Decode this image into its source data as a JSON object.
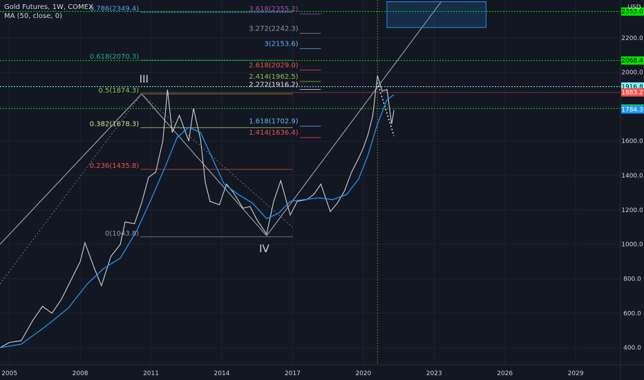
{
  "legend": {
    "title": "Gold Futures, 1W, COMEX",
    "ma": "MA (50, close, 0)"
  },
  "axis": {
    "currency": "USD",
    "y_ticks": [
      400,
      600,
      800,
      1000,
      1200,
      1400,
      1600,
      1800,
      2000,
      2200
    ],
    "y_tick_labels": [
      "400.0",
      "600.0",
      "800.0",
      "1000.0",
      "1200.0",
      "1400.0",
      "1600.0",
      "1800.0",
      "2000.0",
      "2200.0"
    ],
    "x_ticks": [
      2005,
      2008,
      2011,
      2014,
      2017,
      2020,
      2023,
      2026,
      2029
    ],
    "x_tick_labels": [
      "2005",
      "2008",
      "2011",
      "2014",
      "2017",
      "2020",
      "2023",
      "2026",
      "2029"
    ]
  },
  "price_tags": [
    {
      "label": "2353.0",
      "value": 2353.0,
      "color": "#00e600",
      "text_color": "#000000"
    },
    {
      "label": "2068.4",
      "value": 2068.4,
      "color": "#00e600",
      "text_color": "#000000"
    },
    {
      "label": "1916.8",
      "value": 1916.8,
      "color": "#80ffff",
      "text_color": "#000000"
    },
    {
      "label": "1883.2",
      "value": 1883.2,
      "color": "#ef5350",
      "text_color": "#ffffff"
    },
    {
      "label": "1788.9",
      "value": 1788.9,
      "color": "#00e600",
      "text_color": "#000000"
    },
    {
      "label": "1784.3",
      "value": 1784.3,
      "color": "#2196f3",
      "text_color": "#ffffff"
    }
  ],
  "fib_retracement": [
    {
      "label": "0.786(2349.4)",
      "value": 2349.4,
      "color": "#5b9cf6"
    },
    {
      "label": "0.618(2070.3)",
      "value": 2070.3,
      "color": "#26a69a"
    },
    {
      "label": "0.5(1874.3)",
      "value": 1874.3,
      "color": "#8bc34a"
    },
    {
      "label": "0.382(1678.3)",
      "value": 1678.3,
      "color": "#c6e88b"
    },
    {
      "label": "0.236(1435.8)",
      "value": 1435.8,
      "color": "#ef5350"
    },
    {
      "label": "0(1043.8)",
      "value": 1043.8,
      "color": "#9598a1"
    }
  ],
  "fib_extension": [
    {
      "label": "3.618(2355.2)",
      "value": 2355.2,
      "color": "#ab47bc"
    },
    {
      "label": "3.272(2242.3)",
      "value": 2242.3,
      "color": "#9598a1"
    },
    {
      "label": "3(2153.6)",
      "value": 2153.6,
      "color": "#64b5f6"
    },
    {
      "label": "2.618(2029.0)",
      "value": 2029.0,
      "color": "#ef5350"
    },
    {
      "label": "2.414(1962.5)",
      "value": 1962.5,
      "color": "#8bc34a"
    },
    {
      "label": "2.272(1916.2)",
      "value": 1916.2,
      "color": "#e0e3eb"
    },
    {
      "label": "1.618(1702.9)",
      "value": 1702.9,
      "color": "#64b5f6"
    },
    {
      "label": "1.414(1636.4)",
      "value": 1636.4,
      "color": "#ef5350"
    }
  ],
  "wave_labels": [
    {
      "label": "III",
      "year": 2010.7,
      "value": 1940
    },
    {
      "label": "IV",
      "year": 2015.8,
      "value": 955
    }
  ],
  "horizontal_levels": [
    {
      "value": 2353.0,
      "color": "#00e600"
    },
    {
      "value": 2068.4,
      "color": "#00e600"
    },
    {
      "value": 1916.8,
      "color": "#80ffff"
    },
    {
      "value": 1788.9,
      "color": "#00e600"
    }
  ],
  "chart_data": {
    "type": "line",
    "title": "Gold Futures, 1W, COMEX",
    "x_axis": "year",
    "y_axis": "price (USD)",
    "xlim": [
      2004.6,
      2030.9
    ],
    "ylim": [
      300,
      2420
    ],
    "grid": true,
    "series": [
      {
        "name": "Gold Futures",
        "color": "#d1d4dc",
        "x": [
          2004.6,
          2005.0,
          2005.5,
          2006.0,
          2006.4,
          2006.8,
          2007.2,
          2007.6,
          2008.0,
          2008.2,
          2008.6,
          2008.9,
          2009.3,
          2009.7,
          2009.9,
          2010.3,
          2010.6,
          2010.9,
          2011.2,
          2011.5,
          2011.7,
          2011.9,
          2012.2,
          2012.6,
          2012.8,
          2013.1,
          2013.3,
          2013.5,
          2013.9,
          2014.2,
          2014.5,
          2014.9,
          2015.2,
          2015.5,
          2015.9,
          2016.2,
          2016.5,
          2016.9,
          2017.2,
          2017.6,
          2017.9,
          2018.2,
          2018.6,
          2018.9,
          2019.2,
          2019.5,
          2019.8,
          2020.0,
          2020.2,
          2020.4,
          2020.6,
          2020.8,
          2021.0,
          2021.2,
          2021.3
        ],
        "values": [
          400,
          430,
          440,
          560,
          640,
          600,
          680,
          790,
          900,
          1010,
          860,
          760,
          930,
          1000,
          1130,
          1120,
          1240,
          1390,
          1420,
          1600,
          1900,
          1650,
          1750,
          1600,
          1790,
          1610,
          1360,
          1250,
          1230,
          1350,
          1300,
          1210,
          1220,
          1140,
          1060,
          1250,
          1370,
          1170,
          1250,
          1260,
          1290,
          1350,
          1190,
          1240,
          1310,
          1420,
          1500,
          1560,
          1640,
          1750,
          1980,
          1890,
          1900,
          1700,
          1780
        ]
      },
      {
        "name": "MA (50, close, 0)",
        "color": "#2196f3",
        "x": [
          2004.6,
          2005.5,
          2006.5,
          2007.5,
          2008.3,
          2009.0,
          2009.7,
          2010.4,
          2011.0,
          2011.6,
          2012.1,
          2012.6,
          2013.1,
          2013.6,
          2014.1,
          2014.7,
          2015.3,
          2015.9,
          2016.4,
          2016.9,
          2017.5,
          2018.1,
          2018.7,
          2019.3,
          2019.8,
          2020.2,
          2020.6,
          2021.0,
          2021.3
        ],
        "values": [
          400,
          420,
          520,
          630,
          770,
          860,
          920,
          1080,
          1260,
          1450,
          1620,
          1680,
          1650,
          1500,
          1350,
          1290,
          1240,
          1150,
          1180,
          1250,
          1260,
          1270,
          1260,
          1290,
          1380,
          1520,
          1700,
          1840,
          1870
        ]
      }
    ],
    "annotations": {
      "retracement_levels": [
        2349.4,
        2070.3,
        1874.3,
        1678.3,
        1435.8,
        1043.8
      ],
      "extension_levels": [
        2355.2,
        2242.3,
        2153.6,
        2029.0,
        1962.5,
        1916.2,
        1702.9,
        1636.4
      ],
      "waves": [
        "III",
        "IV"
      ]
    }
  }
}
